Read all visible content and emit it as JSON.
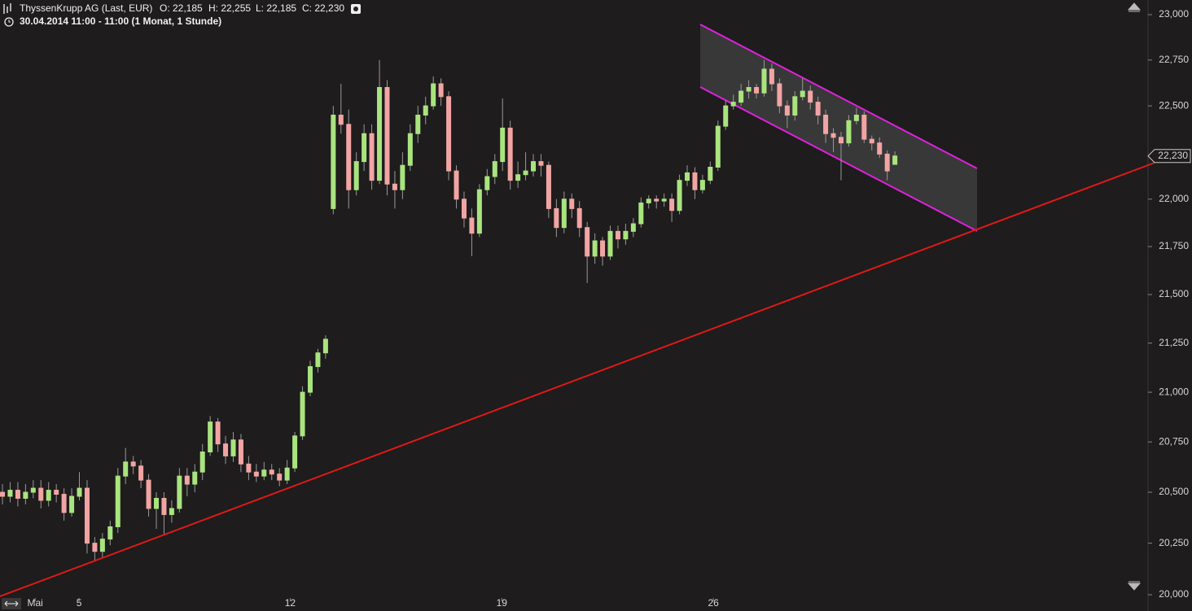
{
  "header": {
    "instrument": "ThyssenKrupp AG (Last, EUR)",
    "open": "O: 22,185",
    "high": "H: 22,255",
    "low": "L: 22,185",
    "close": "C: 22,230",
    "period": "30.04.2014 11:00 - 11:00 (1 Monat, 1 Stunde)"
  },
  "chart_data": {
    "type": "candlestick",
    "log_scale": true,
    "up_color": "#a9e47e",
    "down_color": "#f2a4a4",
    "ylim": [
      20000,
      23000
    ],
    "yticks": [
      {
        "value": 20000,
        "label": "20,000"
      },
      {
        "value": 20250,
        "label": "20,250"
      },
      {
        "value": 20500,
        "label": "20,500"
      },
      {
        "value": 20750,
        "label": "20,750"
      },
      {
        "value": 21000,
        "label": "21,000"
      },
      {
        "value": 21250,
        "label": "21,250"
      },
      {
        "value": 21500,
        "label": "21,500"
      },
      {
        "value": 21750,
        "label": "21,750"
      },
      {
        "value": 22000,
        "label": "22,000"
      },
      {
        "value": 22500,
        "label": "22,500"
      },
      {
        "value": 22750,
        "label": "22,750"
      },
      {
        "value": 23000,
        "label": "23,000"
      }
    ],
    "xlim": [
      -0.32,
      148.9
    ],
    "xticks": [
      {
        "value": 4.25,
        "label": "Mai"
      },
      {
        "value": 9.95,
        "label": "5"
      },
      {
        "value": 37.4,
        "label": "12"
      },
      {
        "value": 64.9,
        "label": "19"
      },
      {
        "value": 92.4,
        "label": "26"
      }
    ],
    "last_price": {
      "value": 22230,
      "label": "22,230"
    },
    "open": [
      20500,
      20480,
      20510,
      20470,
      20500,
      20520,
      20460,
      20510,
      20490,
      20400,
      20480,
      20520,
      20250,
      20210,
      20270,
      20330,
      20580,
      20650,
      20630,
      20560,
      20420,
      20470,
      20390,
      20420,
      20580,
      20540,
      20600,
      20700,
      20850,
      20740,
      20680,
      20760,
      20640,
      20600,
      20580,
      20610,
      20590,
      20560,
      20620,
      20780,
      21000,
      21130,
      21200,
      21950,
      22450,
      22400,
      22050,
      22200,
      22350,
      22100,
      22600,
      22080,
      22050,
      22180,
      22350,
      22450,
      22500,
      22620,
      22550,
      22150,
      22000,
      21900,
      21820,
      22050,
      22120,
      22200,
      22380,
      22100,
      22130,
      22150,
      22200,
      22180,
      21950,
      21850,
      22000,
      21950,
      21850,
      21700,
      21780,
      21700,
      21830,
      21790,
      21830,
      21870,
      21980,
      22000,
      21990,
      22000,
      21940,
      22100,
      22140,
      22050,
      22100,
      22170,
      22390,
      22500,
      22520,
      22580,
      22600,
      22570,
      22700,
      22620,
      22500,
      22450,
      22550,
      22580,
      22520,
      22450,
      22350,
      22330,
      22300,
      22420,
      22450,
      22320,
      22300,
      22240,
      22185
    ],
    "high": [
      20540,
      20550,
      20550,
      20540,
      20560,
      20560,
      20550,
      20540,
      20520,
      20520,
      20600,
      20560,
      20280,
      20300,
      20360,
      20620,
      20720,
      20680,
      20660,
      20590,
      20500,
      20500,
      20460,
      20620,
      20620,
      20640,
      20740,
      20880,
      20870,
      20780,
      20800,
      20790,
      20680,
      20640,
      20650,
      20640,
      20620,
      20660,
      20800,
      21030,
      21160,
      21220,
      21290,
      22500,
      22620,
      22480,
      22250,
      22400,
      22400,
      22750,
      22640,
      22150,
      22250,
      22400,
      22500,
      22550,
      22660,
      22650,
      22580,
      22180,
      22040,
      21950,
      22080,
      22160,
      22240,
      22540,
      22420,
      22200,
      22250,
      22240,
      22240,
      22200,
      22000,
      22040,
      22030,
      21990,
      21880,
      21820,
      21800,
      21860,
      21860,
      21870,
      21900,
      22010,
      22020,
      22020,
      22030,
      22030,
      22130,
      22180,
      22170,
      22130,
      22200,
      22420,
      22530,
      22560,
      22620,
      22640,
      22620,
      22750,
      22730,
      22650,
      22530,
      22580,
      22650,
      22610,
      22550,
      22480,
      22380,
      22360,
      22450,
      22490,
      22470,
      22340,
      22330,
      22260,
      22255
    ],
    "low": [
      20440,
      20450,
      20430,
      20440,
      20470,
      20420,
      20430,
      20450,
      20360,
      20380,
      20460,
      20200,
      20160,
      20180,
      20240,
      20300,
      20540,
      20590,
      20520,
      20380,
      20320,
      20290,
      20350,
      20400,
      20480,
      20500,
      20560,
      20680,
      20700,
      20640,
      20650,
      20600,
      20560,
      20550,
      20560,
      20560,
      20530,
      20540,
      20600,
      20760,
      20980,
      21100,
      21170,
      21920,
      22350,
      21950,
      22020,
      22150,
      22050,
      22080,
      22020,
      21950,
      22000,
      22150,
      22300,
      22400,
      22480,
      22500,
      22100,
      21950,
      21850,
      21700,
      21800,
      22020,
      22080,
      22150,
      22050,
      22060,
      22100,
      22120,
      22120,
      21900,
      21800,
      21820,
      21900,
      21800,
      21560,
      21660,
      21650,
      21680,
      21740,
      21760,
      21800,
      21850,
      21950,
      21950,
      21960,
      21880,
      21920,
      22070,
      22000,
      22030,
      22080,
      22150,
      22370,
      22480,
      22500,
      22540,
      22540,
      22550,
      22580,
      22460,
      22380,
      22420,
      22530,
      22480,
      22400,
      22300,
      22250,
      22100,
      22280,
      22400,
      22300,
      22260,
      22220,
      22100,
      22185
    ],
    "close": [
      20480,
      20510,
      20470,
      20500,
      20520,
      20460,
      20510,
      20490,
      20400,
      20480,
      20520,
      20250,
      20210,
      20270,
      20330,
      20580,
      20650,
      20630,
      20560,
      20420,
      20470,
      20390,
      20420,
      20580,
      20540,
      20600,
      20700,
      20850,
      20740,
      20680,
      20760,
      20640,
      20600,
      20580,
      20610,
      20590,
      20560,
      20620,
      20780,
      21000,
      21130,
      21200,
      21270,
      22450,
      22400,
      22050,
      22200,
      22350,
      22100,
      22600,
      22080,
      22050,
      22180,
      22350,
      22450,
      22500,
      22620,
      22550,
      22150,
      22000,
      21900,
      21820,
      22050,
      22120,
      22200,
      22380,
      22100,
      22130,
      22150,
      22200,
      22180,
      21950,
      21850,
      22000,
      21950,
      21850,
      21700,
      21780,
      21700,
      21830,
      21790,
      21830,
      21870,
      21980,
      22000,
      21990,
      22000,
      21940,
      22100,
      22140,
      22050,
      22100,
      22170,
      22390,
      22500,
      22520,
      22580,
      22600,
      22570,
      22700,
      22620,
      22500,
      22450,
      22550,
      22580,
      22520,
      22450,
      22350,
      22330,
      22300,
      22420,
      22450,
      22320,
      22300,
      22240,
      22150,
      22230
    ]
  }
}
